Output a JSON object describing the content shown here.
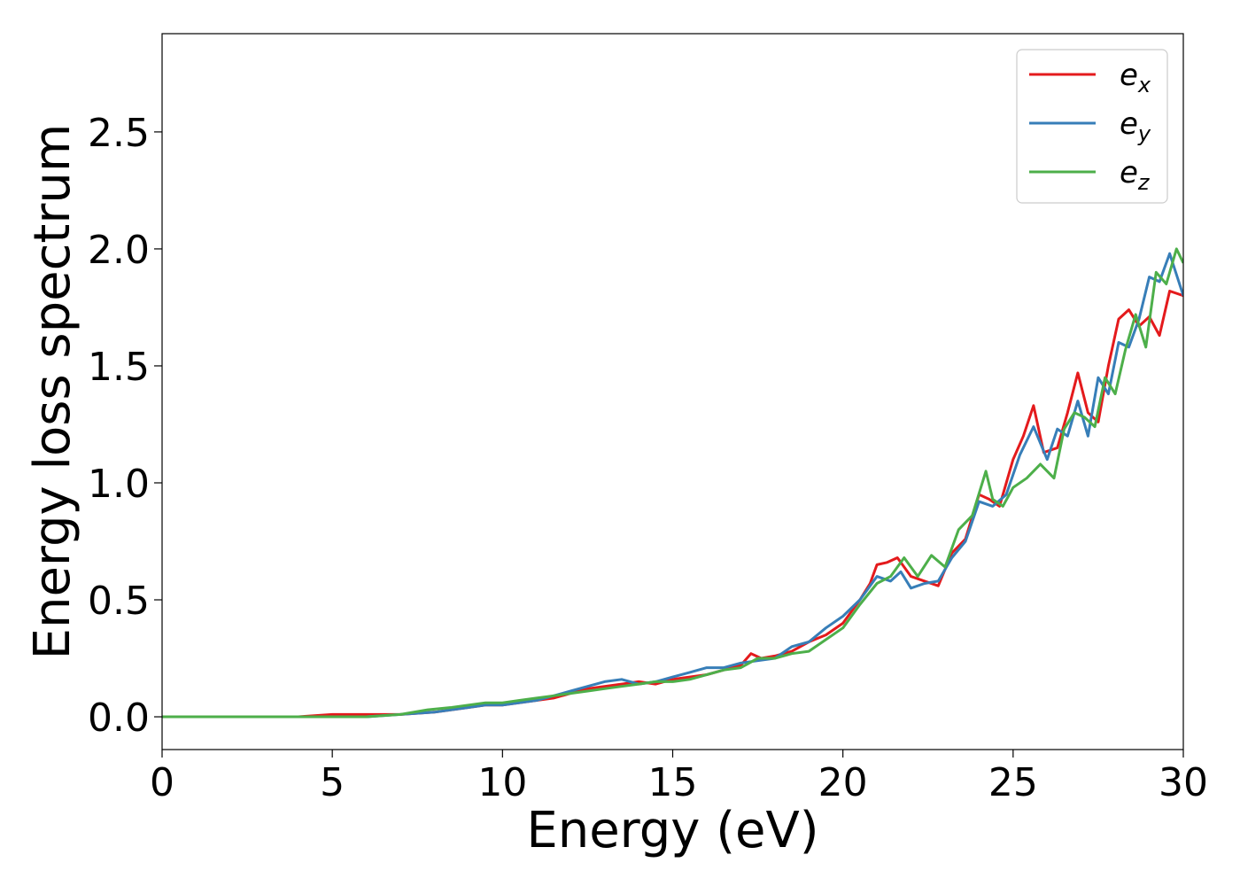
{
  "chart_data": {
    "type": "line",
    "title": "",
    "xlabel": "Energy (eV)",
    "ylabel": "Energy loss spectrum",
    "xlim": [
      0,
      30
    ],
    "ylim": [
      -0.14,
      2.92
    ],
    "xticks": [
      0,
      5,
      10,
      15,
      20,
      25,
      30
    ],
    "yticks": [
      0.0,
      0.5,
      1.0,
      1.5,
      2.0,
      2.5
    ],
    "xtick_labels": [
      "0",
      "5",
      "10",
      "15",
      "20",
      "25",
      "30"
    ],
    "ytick_labels": [
      "0.0",
      "0.5",
      "1.0",
      "1.5",
      "2.0",
      "2.5"
    ],
    "grid": false,
    "legend_position": "top-right",
    "series": [
      {
        "name": "ex",
        "label_base": "e",
        "label_sub": "x",
        "color": "#e41a1c",
        "x": [
          0,
          4,
          5,
          6,
          7,
          8,
          9,
          9.5,
          10,
          10.5,
          11,
          11.5,
          12,
          12.5,
          13,
          13.5,
          14,
          14.5,
          15,
          15.5,
          16,
          16.5,
          17,
          17.3,
          17.6,
          18,
          18.5,
          19,
          19.5,
          20,
          20.5,
          20.8,
          21,
          21.3,
          21.6,
          22,
          22.4,
          22.8,
          23.2,
          23.6,
          24,
          24.3,
          24.6,
          25,
          25.3,
          25.6,
          25.9,
          26.3,
          26.6,
          26.9,
          27.2,
          27.5,
          27.8,
          28.1,
          28.4,
          28.7,
          29,
          29.3,
          29.6,
          30
        ],
        "y": [
          0.0,
          0.0,
          0.01,
          0.01,
          0.01,
          0.02,
          0.04,
          0.05,
          0.05,
          0.06,
          0.07,
          0.08,
          0.1,
          0.12,
          0.13,
          0.14,
          0.15,
          0.14,
          0.16,
          0.17,
          0.18,
          0.2,
          0.22,
          0.27,
          0.25,
          0.26,
          0.28,
          0.32,
          0.35,
          0.4,
          0.5,
          0.57,
          0.65,
          0.66,
          0.68,
          0.6,
          0.58,
          0.56,
          0.7,
          0.76,
          0.95,
          0.93,
          0.9,
          1.1,
          1.2,
          1.33,
          1.13,
          1.15,
          1.3,
          1.47,
          1.3,
          1.26,
          1.5,
          1.7,
          1.74,
          1.67,
          1.71,
          1.63,
          1.82,
          1.8
        ]
      },
      {
        "name": "ey",
        "label_base": "e",
        "label_sub": "y",
        "color": "#377eb8",
        "x": [
          0,
          4,
          5,
          6,
          7,
          8,
          9,
          9.5,
          10,
          10.5,
          11,
          11.5,
          12,
          12.5,
          13,
          13.5,
          14,
          14.5,
          15,
          15.5,
          16,
          16.5,
          17,
          17.5,
          18,
          18.5,
          19,
          19.5,
          20,
          20.5,
          20.8,
          21,
          21.4,
          21.7,
          22,
          22.4,
          22.8,
          23.2,
          23.6,
          24,
          24.4,
          24.8,
          25.2,
          25.6,
          26,
          26.3,
          26.6,
          26.9,
          27.2,
          27.5,
          27.8,
          28.1,
          28.4,
          28.7,
          29,
          29.3,
          29.6,
          30
        ],
        "y": [
          0.0,
          0.0,
          0.0,
          0.0,
          0.01,
          0.02,
          0.04,
          0.05,
          0.05,
          0.06,
          0.07,
          0.09,
          0.11,
          0.13,
          0.15,
          0.16,
          0.14,
          0.15,
          0.17,
          0.19,
          0.21,
          0.21,
          0.23,
          0.24,
          0.25,
          0.3,
          0.32,
          0.38,
          0.43,
          0.5,
          0.56,
          0.6,
          0.58,
          0.62,
          0.55,
          0.57,
          0.58,
          0.68,
          0.75,
          0.92,
          0.9,
          0.95,
          1.12,
          1.24,
          1.1,
          1.23,
          1.2,
          1.35,
          1.2,
          1.45,
          1.38,
          1.6,
          1.58,
          1.7,
          1.88,
          1.86,
          1.98,
          1.8
        ]
      },
      {
        "name": "ez",
        "label_base": "e",
        "label_sub": "z",
        "color": "#4daf4a",
        "x": [
          0,
          4,
          5,
          6,
          7,
          7.8,
          8.5,
          9,
          9.5,
          10,
          10.5,
          11,
          11.5,
          12,
          12.5,
          13,
          13.5,
          14,
          14.5,
          15,
          15.5,
          16,
          16.5,
          17,
          17.5,
          18,
          18.5,
          19,
          19.5,
          20,
          20.5,
          21,
          21.4,
          21.8,
          22.2,
          22.6,
          23,
          23.4,
          23.8,
          24.2,
          24.4,
          24.7,
          25,
          25.4,
          25.8,
          26.2,
          26.5,
          26.8,
          27.1,
          27.4,
          27.7,
          28,
          28.3,
          28.6,
          28.9,
          29.2,
          29.5,
          29.8,
          30
        ],
        "y": [
          0.0,
          0.0,
          0.0,
          0.0,
          0.01,
          0.03,
          0.04,
          0.05,
          0.06,
          0.06,
          0.07,
          0.08,
          0.09,
          0.1,
          0.11,
          0.12,
          0.13,
          0.14,
          0.15,
          0.15,
          0.16,
          0.18,
          0.2,
          0.21,
          0.25,
          0.25,
          0.27,
          0.28,
          0.33,
          0.38,
          0.48,
          0.57,
          0.6,
          0.68,
          0.6,
          0.69,
          0.64,
          0.8,
          0.86,
          1.05,
          0.93,
          0.9,
          0.98,
          1.02,
          1.08,
          1.02,
          1.23,
          1.3,
          1.28,
          1.24,
          1.45,
          1.38,
          1.57,
          1.72,
          1.58,
          1.9,
          1.85,
          2.0,
          1.94
        ]
      }
    ]
  }
}
